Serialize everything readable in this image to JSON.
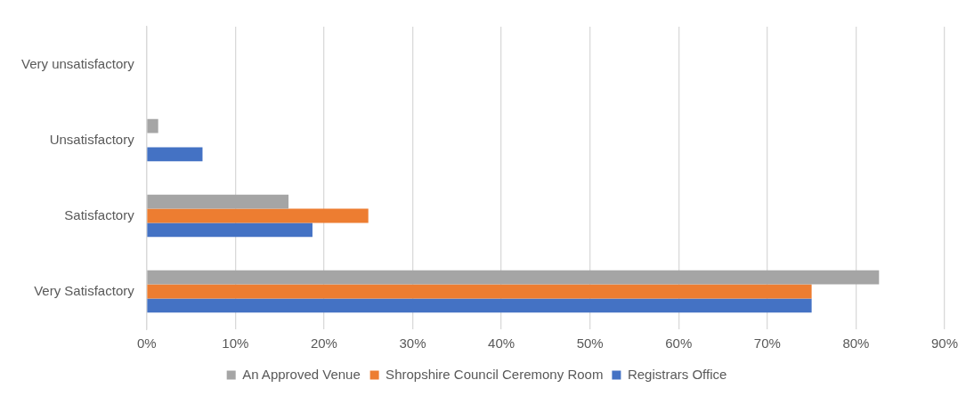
{
  "chart_data": {
    "type": "bar",
    "orientation": "horizontal",
    "categories": [
      "Very unsatisfactory",
      "Unsatisfactory",
      "Satisfactory",
      "Very Satisfactory"
    ],
    "series": [
      {
        "name": "An Approved Venue",
        "color": "#a5a5a5",
        "values": [
          0,
          1.3,
          16,
          82.6
        ]
      },
      {
        "name": "Shropshire Council Ceremony Room",
        "color": "#ed7d31",
        "values": [
          0,
          0,
          25,
          75
        ]
      },
      {
        "name": "Registrars Office",
        "color": "#4472c4",
        "values": [
          0,
          6.3,
          18.7,
          75
        ]
      }
    ],
    "xlim": [
      0,
      90
    ],
    "xticks": [
      {
        "value": 0,
        "label": "0%"
      },
      {
        "value": 10,
        "label": "10%"
      },
      {
        "value": 20,
        "label": "20%"
      },
      {
        "value": 30,
        "label": "30%"
      },
      {
        "value": 40,
        "label": "40%"
      },
      {
        "value": 50,
        "label": "50%"
      },
      {
        "value": 60,
        "label": "60%"
      },
      {
        "value": 70,
        "label": "70%"
      },
      {
        "value": 80,
        "label": "80%"
      },
      {
        "value": 90,
        "label": "90%"
      }
    ],
    "grid": "x",
    "legend": "bottom"
  }
}
